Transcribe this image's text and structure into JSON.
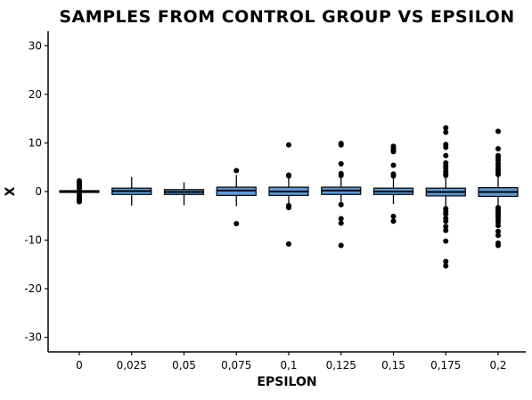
{
  "chart_data": {
    "type": "boxplot",
    "title": "SAMPLES FROM CONTROL GROUP VS EPSILON",
    "xlabel": "EPSILON",
    "ylabel": "X",
    "ylim": [
      -33,
      33
    ],
    "y_ticks": [
      -30,
      -20,
      -10,
      0,
      10,
      20,
      30
    ],
    "grid": false,
    "box_color": "#5b9bd5",
    "categories": [
      "0",
      "0,025",
      "0,05",
      "0,075",
      "0,1",
      "0,125",
      "0,15",
      "0,175",
      "0,2"
    ],
    "boxes": [
      {
        "category": "0",
        "q1": -0.05,
        "median": 0,
        "q3": 0.05,
        "whisker_low": -0.1,
        "whisker_high": 0.1,
        "outliers": [
          2.2,
          1.9,
          1.6,
          1.3,
          1.0,
          0.8,
          0.6,
          -0.6,
          -0.9,
          -1.2,
          -1.5,
          -1.8,
          -2.1
        ]
      },
      {
        "category": "0,025",
        "q1": -0.6,
        "median": 0.1,
        "q3": 0.7,
        "whisker_low": -2.9,
        "whisker_high": 3.0,
        "outliers": []
      },
      {
        "category": "0,05",
        "q1": -0.6,
        "median": -0.1,
        "q3": 0.4,
        "whisker_low": -2.8,
        "whisker_high": 1.9,
        "outliers": []
      },
      {
        "category": "0,075",
        "q1": -0.8,
        "median": 0.2,
        "q3": 0.9,
        "whisker_low": -3.0,
        "whisker_high": 3.4,
        "outliers": [
          4.3,
          -6.6
        ]
      },
      {
        "category": "0,1",
        "q1": -0.8,
        "median": 0,
        "q3": 0.9,
        "whisker_low": -2.9,
        "whisker_high": 2.9,
        "outliers": [
          9.6,
          3.4,
          3.2,
          -2.9,
          -3.3,
          -10.8
        ]
      },
      {
        "category": "0,125",
        "q1": -0.6,
        "median": 0.2,
        "q3": 0.9,
        "whisker_low": -2.8,
        "whisker_high": 3.0,
        "outliers": [
          9.9,
          9.6,
          5.7,
          3.7,
          3.3,
          -2.7,
          -5.6,
          -6.5,
          -11.1
        ]
      },
      {
        "category": "0,15",
        "q1": -0.6,
        "median": 0,
        "q3": 0.7,
        "whisker_low": -2.6,
        "whisker_high": 2.8,
        "outliers": [
          9.3,
          8.9,
          8.5,
          8.2,
          5.4,
          3.6,
          3.2,
          -5.1,
          -6.1
        ]
      },
      {
        "category": "0,175",
        "q1": -0.9,
        "median": -0.1,
        "q3": 0.7,
        "whisker_low": -3.0,
        "whisker_high": 3.0,
        "outliers": [
          13.1,
          12.2,
          9.7,
          9.1,
          7.4,
          5.9,
          5.3,
          4.8,
          4.1,
          3.6,
          3.3,
          -3.5,
          -4.1,
          -4.6,
          -5.5,
          -6.1,
          -7.2,
          -8.0,
          -10.2,
          -14.4,
          -15.3
        ]
      },
      {
        "category": "0,2",
        "q1": -1.0,
        "median": -0.1,
        "q3": 0.8,
        "whisker_low": -3.0,
        "whisker_high": 3.2,
        "outliers": [
          12.4,
          8.8,
          7.4,
          6.9,
          6.4,
          5.7,
          5.2,
          4.7,
          4.3,
          3.9,
          3.5,
          -3.3,
          -3.7,
          -4.1,
          -4.5,
          -4.9,
          -5.3,
          -5.8,
          -6.3,
          -7.0,
          -8.2,
          -9.0,
          -10.6,
          -11.1
        ]
      }
    ]
  }
}
